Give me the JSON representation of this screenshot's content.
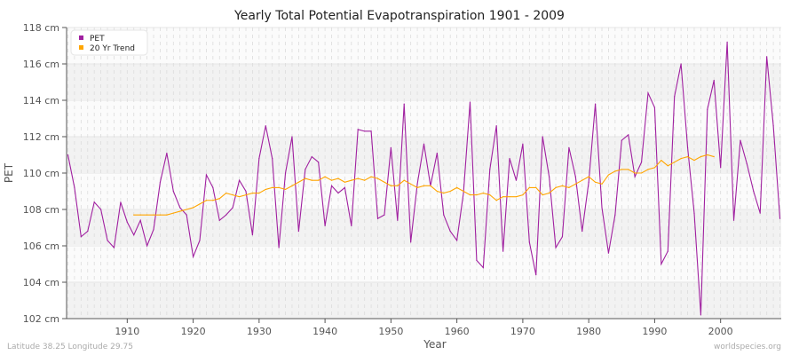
{
  "chart_data": {
    "type": "line",
    "title": "Yearly Total Potential Evapotranspiration 1901 - 2009",
    "xlabel": "Year",
    "ylabel": "PET",
    "xlim": [
      1901,
      2009
    ],
    "ylim": [
      102,
      118
    ],
    "x_ticks": [
      1910,
      1920,
      1930,
      1940,
      1950,
      1960,
      1970,
      1980,
      1990,
      2000
    ],
    "y_ticks": [
      102,
      104,
      106,
      108,
      110,
      112,
      114,
      116,
      118
    ],
    "y_tick_labels": [
      "102 cm",
      "104 cm",
      "106 cm",
      "108 cm",
      "110 cm",
      "112 cm",
      "114 cm",
      "116 cm",
      "118 cm"
    ],
    "grid": true,
    "legend_placement": "top-left",
    "series": [
      {
        "name": "PET",
        "color": "#a020a0",
        "x_start": 1901,
        "values": [
          111.0,
          109.2,
          106.5,
          106.8,
          108.4,
          108.0,
          106.3,
          105.9,
          108.4,
          107.3,
          106.6,
          107.4,
          106.0,
          106.9,
          109.5,
          111.1,
          109.0,
          108.1,
          107.7,
          105.4,
          106.3,
          109.9,
          109.2,
          107.4,
          107.7,
          108.1,
          109.6,
          109.0,
          106.6,
          110.8,
          112.6,
          110.8,
          105.9,
          110.0,
          112.0,
          106.8,
          110.2,
          110.9,
          110.6,
          107.1,
          109.3,
          108.9,
          109.2,
          107.1,
          112.4,
          112.3,
          112.3,
          107.5,
          107.7,
          111.4,
          107.4,
          113.8,
          106.2,
          109.4,
          111.6,
          109.3,
          111.1,
          107.7,
          106.8,
          106.3,
          108.9,
          113.9,
          105.2,
          104.8,
          110.2,
          112.6,
          105.7,
          110.8,
          109.6,
          111.6,
          106.2,
          104.4,
          112.0,
          109.8,
          105.9,
          106.5,
          111.4,
          109.8,
          106.8,
          109.5,
          113.8,
          108.1,
          105.6,
          107.7,
          111.8,
          112.1,
          109.8,
          110.6,
          114.4,
          113.6,
          105.0,
          105.7,
          114.2,
          116.0,
          111.4,
          107.8,
          102.2,
          113.5,
          115.1,
          110.3,
          117.2,
          107.4,
          111.8,
          110.5,
          109.0,
          107.8,
          116.4,
          112.6,
          107.5
        ]
      },
      {
        "name": "20 Yr Trend",
        "color": "#ffa500",
        "x_start": 1911,
        "values": [
          107.7,
          107.7,
          107.7,
          107.7,
          107.7,
          107.7,
          107.8,
          107.9,
          108.0,
          108.1,
          108.3,
          108.5,
          108.5,
          108.6,
          108.9,
          108.8,
          108.7,
          108.8,
          108.9,
          108.9,
          109.1,
          109.2,
          109.2,
          109.1,
          109.3,
          109.5,
          109.7,
          109.6,
          109.6,
          109.8,
          109.6,
          109.7,
          109.5,
          109.6,
          109.7,
          109.6,
          109.8,
          109.7,
          109.5,
          109.3,
          109.3,
          109.6,
          109.4,
          109.2,
          109.3,
          109.3,
          109.0,
          108.9,
          109.0,
          109.2,
          109.0,
          108.8,
          108.8,
          108.9,
          108.8,
          108.5,
          108.7,
          108.7,
          108.7,
          108.8,
          109.2,
          109.2,
          108.8,
          108.9,
          109.2,
          109.3,
          109.2,
          109.4,
          109.6,
          109.8,
          109.5,
          109.4,
          109.9,
          110.1,
          110.2,
          110.2,
          110.0,
          110.0,
          110.2,
          110.3,
          110.7,
          110.4,
          110.6,
          110.8,
          110.9,
          110.7,
          110.9,
          111.0,
          110.9
        ]
      }
    ]
  },
  "footer": {
    "location": "Latitude 38.25 Longitude 29.75",
    "source": "worldspecies.org"
  }
}
